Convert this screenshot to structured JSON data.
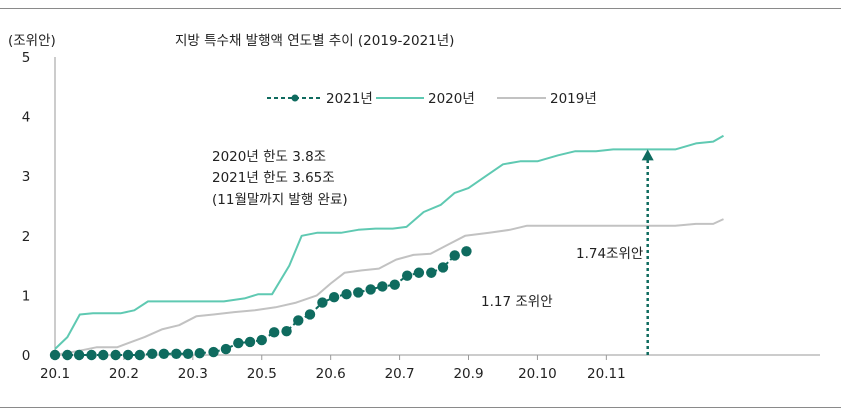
{
  "chart_data": {
    "type": "line",
    "title": "지방 특수채 발행액 연도별 추이 (2019-2021년)",
    "ylabel": "(조위안)",
    "ylim": [
      0,
      5
    ],
    "yticks": [
      "0",
      "1",
      "2",
      "3",
      "4",
      "5"
    ],
    "xlim": [
      1,
      12.1
    ],
    "xticks": [
      {
        "x": 1,
        "label": "20.1"
      },
      {
        "x": 2,
        "label": "20.2"
      },
      {
        "x": 3,
        "label": "20.3"
      },
      {
        "x": 4,
        "label": "20.5"
      },
      {
        "x": 5,
        "label": "20.6"
      },
      {
        "x": 6,
        "label": "20.7"
      },
      {
        "x": 7,
        "label": "20.9"
      },
      {
        "x": 8,
        "label": "20.10"
      },
      {
        "x": 9,
        "label": "20.11"
      }
    ],
    "legend_position": "top-center",
    "series": [
      {
        "name": "2021년",
        "color": "#0f6b5f",
        "style": "dotted-markers",
        "points": [
          [
            1.0,
            0.0
          ],
          [
            1.18,
            0.0
          ],
          [
            1.35,
            0.0
          ],
          [
            1.53,
            0.0
          ],
          [
            1.7,
            0.0
          ],
          [
            1.88,
            0.0
          ],
          [
            2.06,
            0.0
          ],
          [
            2.23,
            0.0
          ],
          [
            2.41,
            0.02
          ],
          [
            2.58,
            0.02
          ],
          [
            2.76,
            0.02
          ],
          [
            2.93,
            0.02
          ],
          [
            3.1,
            0.03
          ],
          [
            3.3,
            0.05
          ],
          [
            3.48,
            0.1
          ],
          [
            3.66,
            0.2
          ],
          [
            3.83,
            0.22
          ],
          [
            4.0,
            0.25
          ],
          [
            4.18,
            0.38
          ],
          [
            4.36,
            0.4
          ],
          [
            4.53,
            0.58
          ],
          [
            4.7,
            0.68
          ],
          [
            4.88,
            0.88
          ],
          [
            5.05,
            0.97
          ],
          [
            5.23,
            1.02
          ],
          [
            5.4,
            1.05
          ],
          [
            5.58,
            1.1
          ],
          [
            5.75,
            1.15
          ],
          [
            5.93,
            1.18
          ],
          [
            6.11,
            1.33
          ],
          [
            6.28,
            1.38
          ],
          [
            6.46,
            1.38
          ],
          [
            6.63,
            1.47
          ],
          [
            6.8,
            1.67
          ],
          [
            6.97,
            1.74
          ]
        ]
      },
      {
        "name": "2020년",
        "color": "#5fc9b2",
        "style": "line",
        "points": [
          [
            1.0,
            0.1
          ],
          [
            1.18,
            0.3
          ],
          [
            1.36,
            0.68
          ],
          [
            1.55,
            0.7
          ],
          [
            1.75,
            0.7
          ],
          [
            1.95,
            0.7
          ],
          [
            2.15,
            0.75
          ],
          [
            2.35,
            0.9
          ],
          [
            2.65,
            0.9
          ],
          [
            3.0,
            0.9
          ],
          [
            3.45,
            0.9
          ],
          [
            3.75,
            0.95
          ],
          [
            3.95,
            1.02
          ],
          [
            4.15,
            1.02
          ],
          [
            4.4,
            1.5
          ],
          [
            4.58,
            2.0
          ],
          [
            4.8,
            2.05
          ],
          [
            5.15,
            2.05
          ],
          [
            5.4,
            2.1
          ],
          [
            5.65,
            2.12
          ],
          [
            5.9,
            2.12
          ],
          [
            6.1,
            2.15
          ],
          [
            6.35,
            2.4
          ],
          [
            6.6,
            2.52
          ],
          [
            6.8,
            2.72
          ],
          [
            7.0,
            2.8
          ],
          [
            7.25,
            3.0
          ],
          [
            7.5,
            3.2
          ],
          [
            7.75,
            3.25
          ],
          [
            8.0,
            3.25
          ],
          [
            8.3,
            3.35
          ],
          [
            8.55,
            3.42
          ],
          [
            8.85,
            3.42
          ],
          [
            9.1,
            3.45
          ],
          [
            9.4,
            3.45
          ],
          [
            9.7,
            3.45
          ],
          [
            10.0,
            3.45
          ],
          [
            10.3,
            3.55
          ],
          [
            10.55,
            3.58
          ],
          [
            10.7,
            3.68
          ]
        ]
      },
      {
        "name": "2019년",
        "color": "#c2c2c2",
        "style": "line",
        "points": [
          [
            1.0,
            0.0
          ],
          [
            1.35,
            0.07
          ],
          [
            1.6,
            0.13
          ],
          [
            1.9,
            0.13
          ],
          [
            2.3,
            0.3
          ],
          [
            2.55,
            0.43
          ],
          [
            2.8,
            0.5
          ],
          [
            3.05,
            0.65
          ],
          [
            3.3,
            0.68
          ],
          [
            3.6,
            0.72
          ],
          [
            3.9,
            0.75
          ],
          [
            4.2,
            0.8
          ],
          [
            4.5,
            0.88
          ],
          [
            4.8,
            1.0
          ],
          [
            5.0,
            1.2
          ],
          [
            5.2,
            1.38
          ],
          [
            5.45,
            1.42
          ],
          [
            5.7,
            1.45
          ],
          [
            5.95,
            1.6
          ],
          [
            6.2,
            1.68
          ],
          [
            6.45,
            1.7
          ],
          [
            6.7,
            1.85
          ],
          [
            6.95,
            2.0
          ],
          [
            7.3,
            2.05
          ],
          [
            7.6,
            2.1
          ],
          [
            7.85,
            2.17
          ],
          [
            8.3,
            2.17
          ],
          [
            8.8,
            2.17
          ],
          [
            9.5,
            2.17
          ],
          [
            10.0,
            2.17
          ],
          [
            10.3,
            2.2
          ],
          [
            10.55,
            2.2
          ],
          [
            10.7,
            2.28
          ]
        ]
      }
    ],
    "annotations": [
      {
        "text": "2020년 한도 3.8조"
      },
      {
        "text": "2021년 한도 3.65조"
      },
      {
        "text": "(11월말까지 발행 완료)"
      },
      {
        "text": "1.74조위안",
        "x": 7.05,
        "y": 1.74
      },
      {
        "text": "1.17 조위안",
        "x": 6.0,
        "y": 0.95
      }
    ],
    "arrow": {
      "x": 9.6,
      "from_y": 0.0,
      "to_y": 3.45,
      "color": "#0f6b5f"
    }
  }
}
